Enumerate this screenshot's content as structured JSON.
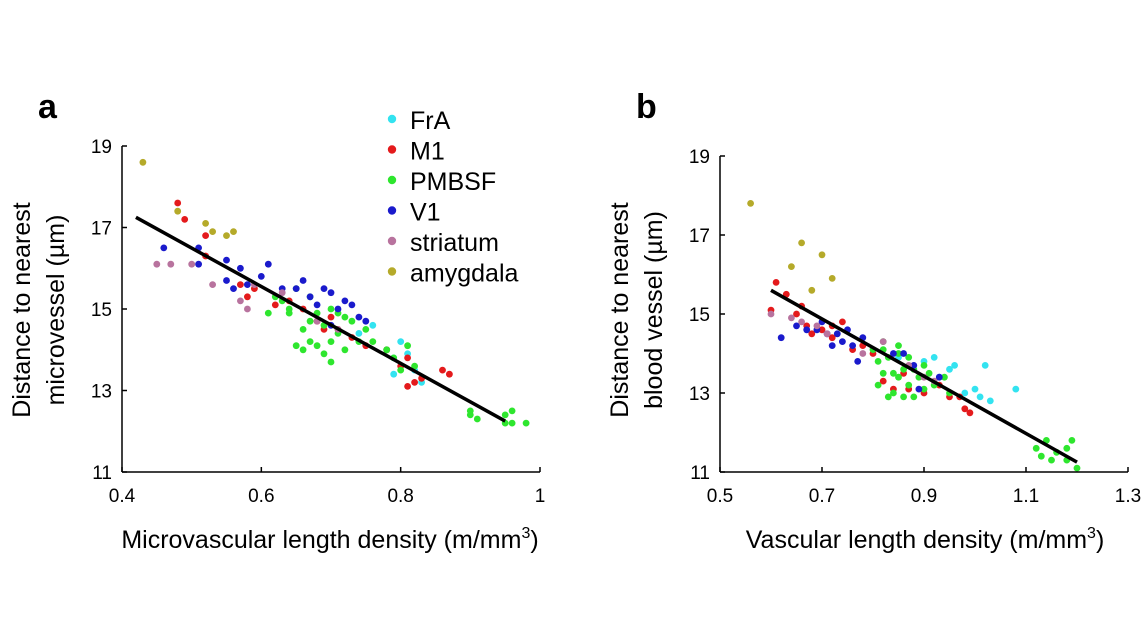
{
  "chart_data": [
    {
      "panel": "a",
      "type": "scatter",
      "xlabel": "Microvascular length density (m/mm",
      "xlabel_sup": "3",
      "xlabel_end": ")",
      "ylabel_line1": "Distance to nearest",
      "ylabel_line2": "microvessel (µm)",
      "xlim": [
        0.4,
        1.0
      ],
      "ylim": [
        11,
        19
      ],
      "xticks": [
        "0.4",
        "0.6",
        "0.8",
        "1"
      ],
      "xtick_values": [
        0.4,
        0.6,
        0.8,
        1.0
      ],
      "yticks": [
        "11",
        "13",
        "15",
        "17",
        "19"
      ],
      "ytick_values": [
        11,
        13,
        15,
        17,
        19
      ],
      "legend": {
        "placement": "top-right",
        "entries": [
          {
            "name": "FrA",
            "color": "#33e3f0"
          },
          {
            "name": "M1",
            "color": "#e41a1c"
          },
          {
            "name": "PMBSF",
            "color": "#2ee62e"
          },
          {
            "name": "V1",
            "color": "#1a1acc"
          },
          {
            "name": "striatum",
            "color": "#b8739e"
          },
          {
            "name": "amygdala",
            "color": "#b5aa2a"
          }
        ]
      },
      "fit_line": {
        "x": [
          0.42,
          0.95
        ],
        "y": [
          17.25,
          12.25
        ],
        "color": "#000000"
      },
      "series": [
        {
          "name": "FrA",
          "color": "#33e3f0",
          "points": [
            [
              0.74,
              14.4
            ],
            [
              0.78,
              14.0
            ],
            [
              0.79,
              13.4
            ],
            [
              0.8,
              14.2
            ],
            [
              0.81,
              13.9
            ],
            [
              0.82,
              13.5
            ],
            [
              0.83,
              13.2
            ],
            [
              0.76,
              14.6
            ],
            [
              0.79,
              13.8
            ]
          ]
        },
        {
          "name": "M1",
          "color": "#e41a1c",
          "points": [
            [
              0.48,
              17.6
            ],
            [
              0.49,
              17.2
            ],
            [
              0.52,
              16.8
            ],
            [
              0.52,
              16.3
            ],
            [
              0.57,
              15.6
            ],
            [
              0.58,
              15.3
            ],
            [
              0.59,
              15.5
            ],
            [
              0.62,
              15.1
            ],
            [
              0.64,
              15.2
            ],
            [
              0.66,
              15.0
            ],
            [
              0.68,
              14.7
            ],
            [
              0.7,
              14.8
            ],
            [
              0.71,
              14.5
            ],
            [
              0.73,
              14.3
            ],
            [
              0.75,
              14.1
            ],
            [
              0.78,
              14.0
            ],
            [
              0.8,
              13.6
            ],
            [
              0.81,
              13.1
            ],
            [
              0.82,
              13.2
            ],
            [
              0.83,
              13.3
            ],
            [
              0.86,
              13.5
            ],
            [
              0.87,
              13.4
            ],
            [
              0.81,
              13.8
            ],
            [
              0.69,
              14.5
            ]
          ]
        },
        {
          "name": "PMBSF",
          "color": "#2ee62e",
          "points": [
            [
              0.61,
              14.9
            ],
            [
              0.62,
              15.3
            ],
            [
              0.63,
              15.2
            ],
            [
              0.64,
              14.9
            ],
            [
              0.65,
              15.5
            ],
            [
              0.65,
              14.1
            ],
            [
              0.66,
              14.5
            ],
            [
              0.66,
              14.0
            ],
            [
              0.67,
              14.2
            ],
            [
              0.67,
              14.7
            ],
            [
              0.68,
              14.1
            ],
            [
              0.68,
              14.9
            ],
            [
              0.69,
              14.6
            ],
            [
              0.69,
              13.9
            ],
            [
              0.7,
              14.2
            ],
            [
              0.7,
              13.7
            ],
            [
              0.71,
              14.4
            ],
            [
              0.71,
              14.9
            ],
            [
              0.72,
              14.8
            ],
            [
              0.72,
              14.0
            ],
            [
              0.73,
              14.7
            ],
            [
              0.74,
              14.2
            ],
            [
              0.75,
              14.5
            ],
            [
              0.76,
              14.2
            ],
            [
              0.78,
              14.0
            ],
            [
              0.79,
              13.8
            ],
            [
              0.8,
              13.5
            ],
            [
              0.81,
              14.1
            ],
            [
              0.82,
              13.6
            ],
            [
              0.9,
              12.5
            ],
            [
              0.9,
              12.4
            ],
            [
              0.91,
              12.3
            ],
            [
              0.95,
              12.2
            ],
            [
              0.95,
              12.4
            ],
            [
              0.96,
              12.5
            ],
            [
              0.96,
              12.2
            ],
            [
              0.98,
              12.2
            ],
            [
              0.64,
              15.0
            ],
            [
              0.67,
              15.3
            ],
            [
              0.7,
              15.0
            ]
          ]
        },
        {
          "name": "V1",
          "color": "#1a1acc",
          "points": [
            [
              0.46,
              16.5
            ],
            [
              0.51,
              16.5
            ],
            [
              0.51,
              16.1
            ],
            [
              0.55,
              16.2
            ],
            [
              0.55,
              15.7
            ],
            [
              0.56,
              15.5
            ],
            [
              0.57,
              16.0
            ],
            [
              0.58,
              15.6
            ],
            [
              0.6,
              15.8
            ],
            [
              0.61,
              16.1
            ],
            [
              0.63,
              15.5
            ],
            [
              0.65,
              15.5
            ],
            [
              0.66,
              15.7
            ],
            [
              0.67,
              15.3
            ],
            [
              0.69,
              15.5
            ],
            [
              0.7,
              15.4
            ],
            [
              0.72,
              15.2
            ],
            [
              0.73,
              15.1
            ],
            [
              0.74,
              14.8
            ],
            [
              0.75,
              14.7
            ],
            [
              0.71,
              15.0
            ],
            [
              0.68,
              15.1
            ],
            [
              0.7,
              14.6
            ]
          ]
        },
        {
          "name": "striatum",
          "color": "#b8739e",
          "points": [
            [
              0.45,
              16.1
            ],
            [
              0.47,
              16.1
            ],
            [
              0.5,
              16.1
            ],
            [
              0.53,
              15.6
            ],
            [
              0.57,
              15.2
            ],
            [
              0.58,
              15.0
            ],
            [
              0.59,
              15.6
            ],
            [
              0.63,
              15.4
            ],
            [
              0.68,
              14.7
            ],
            [
              0.71,
              14.5
            ]
          ]
        },
        {
          "name": "amygdala",
          "color": "#b5aa2a",
          "points": [
            [
              0.43,
              18.6
            ],
            [
              0.48,
              17.4
            ],
            [
              0.52,
              17.1
            ],
            [
              0.55,
              16.8
            ],
            [
              0.56,
              16.9
            ],
            [
              0.53,
              16.9
            ]
          ]
        }
      ]
    },
    {
      "panel": "b",
      "type": "scatter",
      "xlabel": "Vascular length density (m/mm",
      "xlabel_sup": "3",
      "xlabel_end": ")",
      "ylabel_line1": "Distance to nearest",
      "ylabel_line2": "blood vessel (µm)",
      "xlim": [
        0.5,
        1.3
      ],
      "ylim": [
        11,
        19
      ],
      "xticks": [
        "0.5",
        "0.7",
        "0.9",
        "1.1",
        "1.3"
      ],
      "xtick_values": [
        0.5,
        0.7,
        0.9,
        1.1,
        1.3
      ],
      "yticks": [
        "11",
        "13",
        "15",
        "17",
        "19"
      ],
      "ytick_values": [
        11,
        13,
        15,
        17,
        19
      ],
      "fit_line": {
        "x": [
          0.6,
          1.2
        ],
        "y": [
          15.6,
          11.25
        ],
        "color": "#000000"
      },
      "series": [
        {
          "name": "FrA",
          "color": "#33e3f0",
          "points": [
            [
              0.9,
              13.8
            ],
            [
              0.92,
              13.9
            ],
            [
              0.95,
              13.6
            ],
            [
              0.96,
              13.7
            ],
            [
              0.98,
              13.0
            ],
            [
              1.0,
              13.1
            ],
            [
              1.01,
              12.9
            ],
            [
              1.02,
              13.7
            ],
            [
              1.03,
              12.8
            ],
            [
              1.08,
              13.1
            ],
            [
              0.93,
              13.4
            ],
            [
              0.85,
              13.9
            ]
          ]
        },
        {
          "name": "M1",
          "color": "#e41a1c",
          "points": [
            [
              0.6,
              15.1
            ],
            [
              0.61,
              15.8
            ],
            [
              0.63,
              15.5
            ],
            [
              0.65,
              15.0
            ],
            [
              0.66,
              15.2
            ],
            [
              0.67,
              14.7
            ],
            [
              0.68,
              14.5
            ],
            [
              0.7,
              14.6
            ],
            [
              0.72,
              14.4
            ],
            [
              0.74,
              14.8
            ],
            [
              0.76,
              14.1
            ],
            [
              0.78,
              14.2
            ],
            [
              0.8,
              14.0
            ],
            [
              0.82,
              13.3
            ],
            [
              0.84,
              13.1
            ],
            [
              0.86,
              13.5
            ],
            [
              0.87,
              13.1
            ],
            [
              0.9,
              13.0
            ],
            [
              0.93,
              13.2
            ],
            [
              0.95,
              12.9
            ],
            [
              0.97,
              12.9
            ],
            [
              0.98,
              12.6
            ],
            [
              0.99,
              12.5
            ],
            [
              0.72,
              14.7
            ]
          ]
        },
        {
          "name": "PMBSF",
          "color": "#2ee62e",
          "points": [
            [
              0.8,
              14.1
            ],
            [
              0.81,
              13.8
            ],
            [
              0.81,
              13.2
            ],
            [
              0.82,
              14.1
            ],
            [
              0.82,
              13.5
            ],
            [
              0.83,
              13.9
            ],
            [
              0.83,
              12.9
            ],
            [
              0.84,
              13.5
            ],
            [
              0.84,
              13.0
            ],
            [
              0.85,
              14.0
            ],
            [
              0.85,
              13.4
            ],
            [
              0.86,
              12.9
            ],
            [
              0.86,
              13.6
            ],
            [
              0.87,
              13.2
            ],
            [
              0.87,
              13.9
            ],
            [
              0.88,
              13.6
            ],
            [
              0.88,
              12.9
            ],
            [
              0.89,
              13.4
            ],
            [
              0.9,
              13.7
            ],
            [
              0.9,
              13.1
            ],
            [
              0.91,
              13.5
            ],
            [
              0.92,
              13.2
            ],
            [
              0.94,
              13.4
            ],
            [
              0.95,
              13.0
            ],
            [
              1.12,
              11.6
            ],
            [
              1.13,
              11.4
            ],
            [
              1.14,
              11.8
            ],
            [
              1.15,
              11.3
            ],
            [
              1.16,
              11.5
            ],
            [
              1.18,
              11.6
            ],
            [
              1.19,
              11.8
            ],
            [
              1.2,
              11.1
            ],
            [
              1.18,
              11.3
            ],
            [
              0.82,
              14.3
            ],
            [
              0.85,
              14.2
            ]
          ]
        },
        {
          "name": "V1",
          "color": "#1a1acc",
          "points": [
            [
              0.62,
              14.4
            ],
            [
              0.65,
              14.7
            ],
            [
              0.67,
              14.6
            ],
            [
              0.69,
              14.6
            ],
            [
              0.7,
              14.8
            ],
            [
              0.71,
              14.5
            ],
            [
              0.72,
              14.2
            ],
            [
              0.73,
              14.5
            ],
            [
              0.74,
              14.3
            ],
            [
              0.75,
              14.6
            ],
            [
              0.77,
              13.8
            ],
            [
              0.78,
              14.4
            ],
            [
              0.84,
              14.0
            ],
            [
              0.86,
              14.0
            ],
            [
              0.88,
              13.7
            ],
            [
              0.93,
              13.4
            ],
            [
              0.89,
              13.1
            ],
            [
              0.76,
              14.2
            ]
          ]
        },
        {
          "name": "striatum",
          "color": "#b8739e",
          "points": [
            [
              0.6,
              15.0
            ],
            [
              0.64,
              14.9
            ],
            [
              0.66,
              14.8
            ],
            [
              0.69,
              14.7
            ],
            [
              0.71,
              14.5
            ],
            [
              0.78,
              14.0
            ],
            [
              0.82,
              14.3
            ],
            [
              0.87,
              13.7
            ],
            [
              0.9,
              13.4
            ],
            [
              0.92,
              13.3
            ]
          ]
        },
        {
          "name": "amygdala",
          "color": "#b5aa2a",
          "points": [
            [
              0.56,
              17.8
            ],
            [
              0.64,
              16.2
            ],
            [
              0.66,
              16.8
            ],
            [
              0.7,
              16.5
            ],
            [
              0.72,
              15.9
            ],
            [
              0.68,
              15.6
            ]
          ]
        }
      ]
    }
  ]
}
